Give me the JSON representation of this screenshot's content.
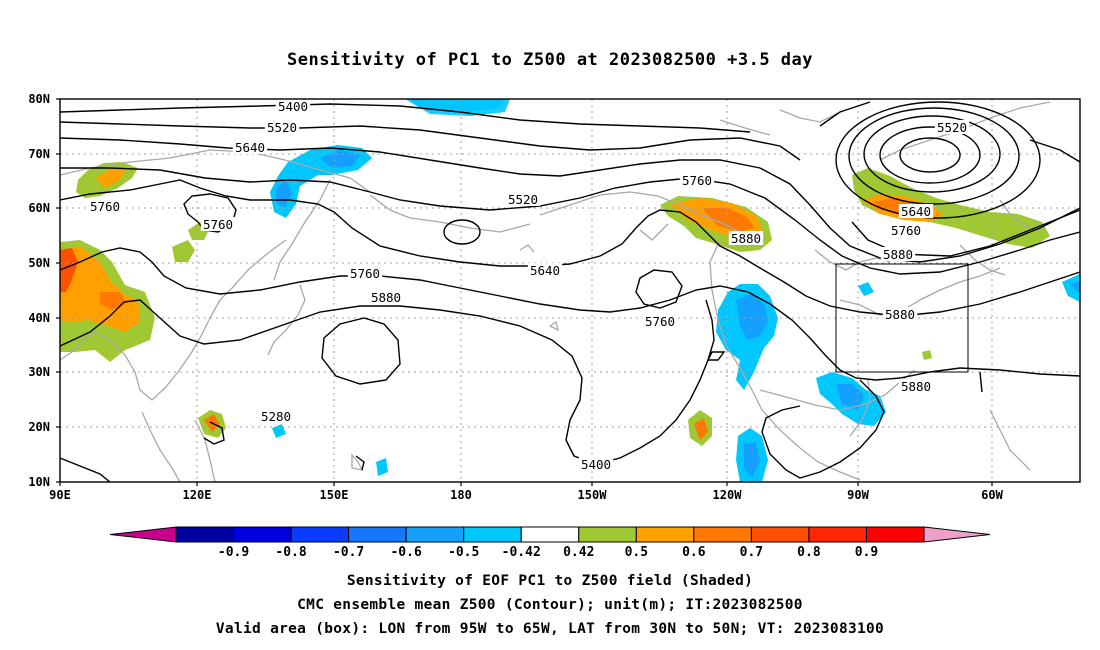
{
  "title": "Sensitivity of PC1 to Z500 at 2023082500 +3.5 day",
  "map": {
    "lat_labels": [
      "80N",
      "70N",
      "60N",
      "50N",
      "40N",
      "30N",
      "20N",
      "10N"
    ],
    "lon_labels": [
      "90E",
      "120E",
      "150E",
      "180",
      "150W",
      "120W",
      "90W",
      "60W"
    ],
    "contour_labels": [
      "5400",
      "5520",
      "5640",
      "5760",
      "5520",
      "5760",
      "5760",
      "5640",
      "5880",
      "5760",
      "5760",
      "5880",
      "5280",
      "5400",
      "5520",
      "5640",
      "5760",
      "5880",
      "5880",
      "5880"
    ],
    "box": {
      "lon_from": "95W",
      "lon_to": "65W",
      "lat_from": "30N",
      "lat_to": "50N"
    }
  },
  "colorbar": {
    "labels": [
      "-0.9",
      "-0.8",
      "-0.7",
      "-0.6",
      "-0.5",
      "-0.42",
      "0.42",
      "0.5",
      "0.6",
      "0.7",
      "0.8",
      "0.9"
    ],
    "colors": [
      "#c8008c",
      "#0000a0",
      "#0000e0",
      "#0a3cff",
      "#1478ff",
      "#14a0ff",
      "#00c8ff",
      "#ffffff",
      "#a0c832",
      "#ffa000",
      "#ff7800",
      "#ff5000",
      "#ff2800",
      "#ff0000",
      "#f0a0c8"
    ]
  },
  "captions": [
    "Sensitivity of EOF PC1 to Z500 field (Shaded)",
    "CMC ensemble mean Z500 (Contour); unit(m); IT:2023082500",
    "Valid area (box): LON from 95W to 65W, LAT from 30N to 50N; VT: 2023083100"
  ]
}
